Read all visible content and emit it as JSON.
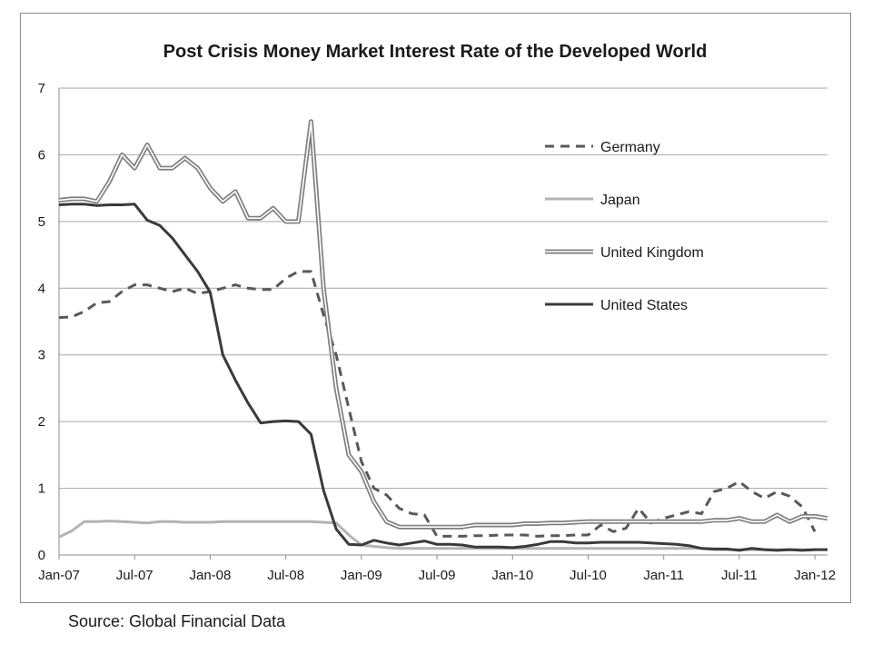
{
  "source": "Source: Global Financial Data",
  "colors": {
    "germany": "#595959",
    "japan": "#b3b3b3",
    "uk_outer": "#7f7f7f",
    "uk_inner": "#ffffff",
    "us": "#3a3a3a",
    "grid": "#a6a6a6",
    "axis": "#8c8c8c"
  },
  "chart_data": {
    "type": "line",
    "title": "Post Crisis Money Market Interest Rate of the Developed World",
    "xlabel": "",
    "ylabel": "",
    "x_type": "date",
    "xlim": [
      "2007-01",
      "2012-02"
    ],
    "ylim": [
      0,
      7
    ],
    "yticks": [
      "0",
      "1",
      "2",
      "3",
      "4",
      "5",
      "6",
      "7"
    ],
    "xticks": [
      {
        "date": "2007-01",
        "label": "Jan-07"
      },
      {
        "date": "2007-07",
        "label": "Jul-07"
      },
      {
        "date": "2008-01",
        "label": "Jan-08"
      },
      {
        "date": "2008-07",
        "label": "Jul-08"
      },
      {
        "date": "2009-01",
        "label": "Jan-09"
      },
      {
        "date": "2009-07",
        "label": "Jul-09"
      },
      {
        "date": "2010-01",
        "label": "Jan-10"
      },
      {
        "date": "2010-07",
        "label": "Jul-10"
      },
      {
        "date": "2011-01",
        "label": "Jan-11"
      },
      {
        "date": "2011-07",
        "label": "Jul-11"
      },
      {
        "date": "2012-01",
        "label": "Jan-12"
      }
    ],
    "grid": "horizontal",
    "legend_position": "right-center",
    "series": [
      {
        "name": "Germany",
        "style": "dashed",
        "points": [
          [
            "2007-01",
            3.56
          ],
          [
            "2007-02",
            3.57
          ],
          [
            "2007-03",
            3.65
          ],
          [
            "2007-04",
            3.78
          ],
          [
            "2007-05",
            3.8
          ],
          [
            "2007-06",
            3.95
          ],
          [
            "2007-07",
            4.05
          ],
          [
            "2007-08",
            4.05
          ],
          [
            "2007-09",
            4.0
          ],
          [
            "2007-10",
            3.95
          ],
          [
            "2007-11",
            4.0
          ],
          [
            "2007-12",
            3.92
          ],
          [
            "2008-01",
            3.95
          ],
          [
            "2008-02",
            4.0
          ],
          [
            "2008-03",
            4.05
          ],
          [
            "2008-04",
            4.0
          ],
          [
            "2008-05",
            3.98
          ],
          [
            "2008-06",
            3.98
          ],
          [
            "2008-07",
            4.15
          ],
          [
            "2008-08",
            4.25
          ],
          [
            "2008-09",
            4.25
          ],
          [
            "2008-10",
            3.6
          ],
          [
            "2008-11",
            3.0
          ],
          [
            "2008-12",
            2.2
          ],
          [
            "2009-01",
            1.4
          ],
          [
            "2009-02",
            1.0
          ],
          [
            "2009-03",
            0.9
          ],
          [
            "2009-04",
            0.7
          ],
          [
            "2009-05",
            0.62
          ],
          [
            "2009-06",
            0.6
          ],
          [
            "2009-07",
            0.28
          ],
          [
            "2009-08",
            0.28
          ],
          [
            "2009-09",
            0.28
          ],
          [
            "2009-10",
            0.29
          ],
          [
            "2009-11",
            0.29
          ],
          [
            "2009-12",
            0.3
          ],
          [
            "2010-01",
            0.3
          ],
          [
            "2010-02",
            0.3
          ],
          [
            "2010-03",
            0.28
          ],
          [
            "2010-04",
            0.29
          ],
          [
            "2010-05",
            0.29
          ],
          [
            "2010-06",
            0.3
          ],
          [
            "2010-07",
            0.3
          ],
          [
            "2010-08",
            0.45
          ],
          [
            "2010-09",
            0.35
          ],
          [
            "2010-10",
            0.4
          ],
          [
            "2010-11",
            0.7
          ],
          [
            "2010-12",
            0.48
          ],
          [
            "2011-01",
            0.55
          ],
          [
            "2011-02",
            0.6
          ],
          [
            "2011-03",
            0.65
          ],
          [
            "2011-04",
            0.62
          ],
          [
            "2011-05",
            0.95
          ],
          [
            "2011-06",
            1.0
          ],
          [
            "2011-07",
            1.1
          ],
          [
            "2011-08",
            0.95
          ],
          [
            "2011-09",
            0.85
          ],
          [
            "2011-10",
            0.95
          ],
          [
            "2011-11",
            0.88
          ],
          [
            "2011-12",
            0.72
          ],
          [
            "2012-01",
            0.35
          ]
        ]
      },
      {
        "name": "Japan",
        "style": "solid-light",
        "points": [
          [
            "2007-01",
            0.27
          ],
          [
            "2007-02",
            0.36
          ],
          [
            "2007-03",
            0.5
          ],
          [
            "2007-04",
            0.5
          ],
          [
            "2007-05",
            0.51
          ],
          [
            "2007-06",
            0.5
          ],
          [
            "2007-07",
            0.49
          ],
          [
            "2007-08",
            0.48
          ],
          [
            "2007-09",
            0.5
          ],
          [
            "2007-10",
            0.5
          ],
          [
            "2007-11",
            0.49
          ],
          [
            "2007-12",
            0.49
          ],
          [
            "2008-01",
            0.49
          ],
          [
            "2008-02",
            0.5
          ],
          [
            "2008-03",
            0.5
          ],
          [
            "2008-04",
            0.5
          ],
          [
            "2008-05",
            0.5
          ],
          [
            "2008-06",
            0.5
          ],
          [
            "2008-07",
            0.5
          ],
          [
            "2008-08",
            0.5
          ],
          [
            "2008-09",
            0.5
          ],
          [
            "2008-10",
            0.49
          ],
          [
            "2008-11",
            0.48
          ],
          [
            "2008-12",
            0.3
          ],
          [
            "2009-01",
            0.15
          ],
          [
            "2009-02",
            0.13
          ],
          [
            "2009-03",
            0.11
          ],
          [
            "2009-04",
            0.1
          ],
          [
            "2009-05",
            0.1
          ],
          [
            "2009-06",
            0.1
          ],
          [
            "2009-07",
            0.1
          ],
          [
            "2009-08",
            0.1
          ],
          [
            "2009-09",
            0.1
          ],
          [
            "2009-10",
            0.1
          ],
          [
            "2009-11",
            0.1
          ],
          [
            "2009-12",
            0.1
          ],
          [
            "2010-01",
            0.1
          ],
          [
            "2010-02",
            0.1
          ],
          [
            "2010-03",
            0.1
          ],
          [
            "2010-04",
            0.1
          ],
          [
            "2010-05",
            0.1
          ],
          [
            "2010-06",
            0.1
          ],
          [
            "2010-07",
            0.1
          ],
          [
            "2010-08",
            0.1
          ],
          [
            "2010-09",
            0.1
          ],
          [
            "2010-10",
            0.1
          ],
          [
            "2010-11",
            0.1
          ],
          [
            "2010-12",
            0.1
          ],
          [
            "2011-01",
            0.1
          ],
          [
            "2011-02",
            0.1
          ],
          [
            "2011-03",
            0.1
          ],
          [
            "2011-04",
            0.1
          ],
          [
            "2011-05",
            0.08
          ],
          [
            "2011-06",
            0.08
          ],
          [
            "2011-07",
            0.08
          ],
          [
            "2011-08",
            0.08
          ],
          [
            "2011-09",
            0.08
          ],
          [
            "2011-10",
            0.08
          ],
          [
            "2011-11",
            0.08
          ],
          [
            "2011-12",
            0.08
          ],
          [
            "2012-01",
            0.08
          ]
        ]
      },
      {
        "name": "United Kingdom",
        "style": "double",
        "points": [
          [
            "2007-01",
            5.32
          ],
          [
            "2007-02",
            5.34
          ],
          [
            "2007-03",
            5.34
          ],
          [
            "2007-04",
            5.3
          ],
          [
            "2007-05",
            5.6
          ],
          [
            "2007-06",
            6.0
          ],
          [
            "2007-07",
            5.8
          ],
          [
            "2007-08",
            6.15
          ],
          [
            "2007-09",
            5.8
          ],
          [
            "2007-10",
            5.8
          ],
          [
            "2007-11",
            5.95
          ],
          [
            "2007-12",
            5.8
          ],
          [
            "2008-01",
            5.5
          ],
          [
            "2008-02",
            5.3
          ],
          [
            "2008-03",
            5.45
          ],
          [
            "2008-04",
            5.05
          ],
          [
            "2008-05",
            5.05
          ],
          [
            "2008-06",
            5.2
          ],
          [
            "2008-07",
            5.0
          ],
          [
            "2008-08",
            5.0
          ],
          [
            "2008-09",
            6.5
          ],
          [
            "2008-10",
            4.0
          ],
          [
            "2008-11",
            2.5
          ],
          [
            "2008-12",
            1.5
          ],
          [
            "2009-01",
            1.25
          ],
          [
            "2009-02",
            0.8
          ],
          [
            "2009-03",
            0.5
          ],
          [
            "2009-04",
            0.42
          ],
          [
            "2009-05",
            0.42
          ],
          [
            "2009-06",
            0.42
          ],
          [
            "2009-07",
            0.42
          ],
          [
            "2009-08",
            0.42
          ],
          [
            "2009-09",
            0.42
          ],
          [
            "2009-10",
            0.45
          ],
          [
            "2009-11",
            0.45
          ],
          [
            "2009-12",
            0.45
          ],
          [
            "2010-01",
            0.45
          ],
          [
            "2010-02",
            0.47
          ],
          [
            "2010-03",
            0.47
          ],
          [
            "2010-04",
            0.48
          ],
          [
            "2010-05",
            0.48
          ],
          [
            "2010-06",
            0.49
          ],
          [
            "2010-07",
            0.5
          ],
          [
            "2010-08",
            0.5
          ],
          [
            "2010-09",
            0.5
          ],
          [
            "2010-10",
            0.5
          ],
          [
            "2010-11",
            0.5
          ],
          [
            "2010-12",
            0.5
          ],
          [
            "2011-01",
            0.5
          ],
          [
            "2011-02",
            0.5
          ],
          [
            "2011-03",
            0.5
          ],
          [
            "2011-04",
            0.5
          ],
          [
            "2011-05",
            0.52
          ],
          [
            "2011-06",
            0.52
          ],
          [
            "2011-07",
            0.55
          ],
          [
            "2011-08",
            0.5
          ],
          [
            "2011-09",
            0.5
          ],
          [
            "2011-10",
            0.6
          ],
          [
            "2011-11",
            0.5
          ],
          [
            "2011-12",
            0.58
          ],
          [
            "2012-01",
            0.58
          ],
          [
            "2012-02",
            0.55
          ]
        ]
      },
      {
        "name": "United States",
        "style": "solid-dark",
        "points": [
          [
            "2007-01",
            5.25
          ],
          [
            "2007-02",
            5.26
          ],
          [
            "2007-03",
            5.26
          ],
          [
            "2007-04",
            5.24
          ],
          [
            "2007-05",
            5.25
          ],
          [
            "2007-06",
            5.25
          ],
          [
            "2007-07",
            5.26
          ],
          [
            "2007-08",
            5.02
          ],
          [
            "2007-09",
            4.94
          ],
          [
            "2007-10",
            4.75
          ],
          [
            "2007-11",
            4.5
          ],
          [
            "2007-12",
            4.25
          ],
          [
            "2008-01",
            3.94
          ],
          [
            "2008-02",
            3.0
          ],
          [
            "2008-03",
            2.62
          ],
          [
            "2008-04",
            2.28
          ],
          [
            "2008-05",
            1.98
          ],
          [
            "2008-06",
            2.0
          ],
          [
            "2008-07",
            2.01
          ],
          [
            "2008-08",
            2.0
          ],
          [
            "2008-09",
            1.81
          ],
          [
            "2008-10",
            0.97
          ],
          [
            "2008-11",
            0.39
          ],
          [
            "2008-12",
            0.16
          ],
          [
            "2009-01",
            0.15
          ],
          [
            "2009-02",
            0.22
          ],
          [
            "2009-03",
            0.18
          ],
          [
            "2009-04",
            0.15
          ],
          [
            "2009-05",
            0.18
          ],
          [
            "2009-06",
            0.21
          ],
          [
            "2009-07",
            0.16
          ],
          [
            "2009-08",
            0.16
          ],
          [
            "2009-09",
            0.15
          ],
          [
            "2009-10",
            0.12
          ],
          [
            "2009-11",
            0.12
          ],
          [
            "2009-12",
            0.12
          ],
          [
            "2010-01",
            0.11
          ],
          [
            "2010-02",
            0.13
          ],
          [
            "2010-03",
            0.16
          ],
          [
            "2010-04",
            0.2
          ],
          [
            "2010-05",
            0.2
          ],
          [
            "2010-06",
            0.18
          ],
          [
            "2010-07",
            0.18
          ],
          [
            "2010-08",
            0.19
          ],
          [
            "2010-09",
            0.19
          ],
          [
            "2010-10",
            0.19
          ],
          [
            "2010-11",
            0.19
          ],
          [
            "2010-12",
            0.18
          ],
          [
            "2011-01",
            0.17
          ],
          [
            "2011-02",
            0.16
          ],
          [
            "2011-03",
            0.14
          ],
          [
            "2011-04",
            0.1
          ],
          [
            "2011-05",
            0.09
          ],
          [
            "2011-06",
            0.09
          ],
          [
            "2011-07",
            0.07
          ],
          [
            "2011-08",
            0.1
          ],
          [
            "2011-09",
            0.08
          ],
          [
            "2011-10",
            0.07
          ],
          [
            "2011-11",
            0.08
          ],
          [
            "2011-12",
            0.07
          ],
          [
            "2012-01",
            0.08
          ],
          [
            "2012-02",
            0.08
          ]
        ]
      }
    ]
  }
}
